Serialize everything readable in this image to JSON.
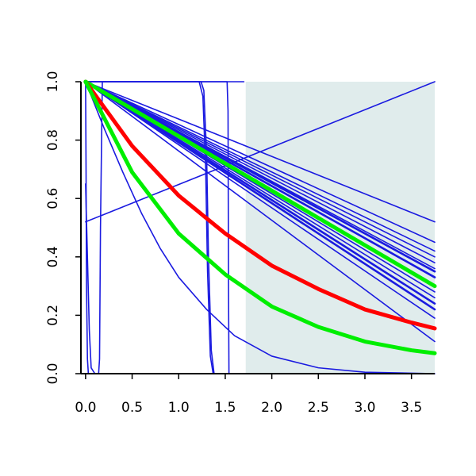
{
  "chart_data": {
    "type": "line",
    "title": "",
    "xlabel": "",
    "ylabel": "",
    "xlim": [
      -0.05,
      3.75
    ],
    "ylim": [
      0.0,
      1.0
    ],
    "grid": false,
    "legend": "none",
    "x_ticks": [
      "0.0",
      "0.5",
      "1.0",
      "1.5",
      "2.0",
      "2.5",
      "3.0",
      "3.5"
    ],
    "y_ticks": [
      "0.0",
      "0.2",
      "0.4",
      "0.6",
      "0.8",
      "1.0"
    ],
    "shaded_region": {
      "x": [
        1.72,
        3.75
      ],
      "y": [
        0.0,
        1.0
      ],
      "color": "#e0ecec"
    },
    "colors": {
      "blue": "#1a1ae0",
      "red": "#ff0000",
      "green": "#00ee00",
      "axis": "#000000"
    },
    "series": [
      {
        "color": "blue",
        "width": 1.6,
        "points": [
          [
            0.0,
            0.52
          ],
          [
            3.75,
            1.0
          ]
        ]
      },
      {
        "color": "blue",
        "width": 1.6,
        "points": [
          [
            0.0,
            1.0
          ],
          [
            0.2,
            0.84
          ],
          [
            0.4,
            0.69
          ],
          [
            0.6,
            0.55
          ],
          [
            0.8,
            0.43
          ],
          [
            1.0,
            0.33
          ],
          [
            1.3,
            0.22
          ],
          [
            1.6,
            0.13
          ],
          [
            2.0,
            0.06
          ],
          [
            2.5,
            0.02
          ],
          [
            3.0,
            0.005
          ],
          [
            3.75,
            0.0
          ]
        ]
      },
      {
        "color": "blue",
        "width": 1.6,
        "points": [
          [
            0.0,
            1.0
          ],
          [
            3.75,
            0.52
          ]
        ]
      },
      {
        "color": "blue",
        "width": 1.6,
        "points": [
          [
            0.0,
            1.0
          ],
          [
            3.75,
            0.45
          ]
        ]
      },
      {
        "color": "blue",
        "width": 1.6,
        "points": [
          [
            0.0,
            1.0
          ],
          [
            3.75,
            0.42
          ]
        ]
      },
      {
        "color": "blue",
        "width": 1.6,
        "points": [
          [
            0.0,
            1.0
          ],
          [
            3.75,
            0.4
          ]
        ]
      },
      {
        "color": "blue",
        "width": 1.6,
        "points": [
          [
            0.0,
            1.0
          ],
          [
            3.75,
            0.38
          ]
        ]
      },
      {
        "color": "blue",
        "width": 1.6,
        "points": [
          [
            0.0,
            1.0
          ],
          [
            3.75,
            0.36
          ]
        ]
      },
      {
        "color": "blue",
        "width": 2.6,
        "points": [
          [
            0.0,
            1.0
          ],
          [
            3.75,
            0.35
          ]
        ]
      },
      {
        "color": "blue",
        "width": 2.6,
        "points": [
          [
            0.0,
            1.0
          ],
          [
            3.75,
            0.33
          ]
        ]
      },
      {
        "color": "blue",
        "width": 1.6,
        "points": [
          [
            0.0,
            1.0
          ],
          [
            3.75,
            0.3
          ]
        ]
      },
      {
        "color": "blue",
        "width": 1.6,
        "points": [
          [
            0.0,
            1.0
          ],
          [
            3.75,
            0.28
          ]
        ]
      },
      {
        "color": "blue",
        "width": 1.6,
        "points": [
          [
            0.0,
            1.0
          ],
          [
            3.75,
            0.26
          ]
        ]
      },
      {
        "color": "blue",
        "width": 2.6,
        "points": [
          [
            0.0,
            1.0
          ],
          [
            3.75,
            0.24
          ]
        ]
      },
      {
        "color": "blue",
        "width": 2.6,
        "points": [
          [
            0.0,
            1.0
          ],
          [
            3.75,
            0.22
          ]
        ]
      },
      {
        "color": "blue",
        "width": 1.6,
        "points": [
          [
            0.0,
            1.0
          ],
          [
            3.75,
            0.19
          ]
        ]
      },
      {
        "color": "blue",
        "width": 1.6,
        "points": [
          [
            0.0,
            1.0
          ],
          [
            3.75,
            0.11
          ]
        ]
      },
      {
        "color": "blue",
        "width": 1.6,
        "points": [
          [
            0.0,
            1.0
          ],
          [
            0.005,
            0.7
          ],
          [
            0.01,
            0.3
          ],
          [
            0.02,
            0.05
          ],
          [
            0.03,
            0.0
          ],
          [
            0.06,
            0.0
          ]
        ]
      },
      {
        "color": "blue",
        "width": 1.6,
        "points": [
          [
            0.0,
            0.65
          ],
          [
            0.04,
            0.15
          ],
          [
            0.06,
            0.02
          ],
          [
            0.1,
            0.0
          ]
        ]
      },
      {
        "color": "blue",
        "width": 1.6,
        "points": [
          [
            0.1,
            0.0
          ],
          [
            0.14,
            0.0
          ],
          [
            0.15,
            0.05
          ],
          [
            0.16,
            0.5
          ],
          [
            0.18,
            1.0
          ],
          [
            0.22,
            1.0
          ]
        ]
      },
      {
        "color": "blue",
        "width": 1.6,
        "points": [
          [
            0.0,
            1.0
          ],
          [
            1.24,
            1.0
          ],
          [
            1.27,
            0.97
          ],
          [
            1.3,
            0.75
          ],
          [
            1.32,
            0.4
          ],
          [
            1.35,
            0.08
          ],
          [
            1.38,
            0.0
          ],
          [
            1.42,
            0.0
          ]
        ]
      },
      {
        "color": "blue",
        "width": 1.6,
        "points": [
          [
            0.0,
            1.0
          ],
          [
            1.22,
            1.0
          ],
          [
            1.26,
            0.95
          ],
          [
            1.29,
            0.7
          ],
          [
            1.31,
            0.35
          ],
          [
            1.34,
            0.06
          ],
          [
            1.37,
            0.0
          ]
        ]
      },
      {
        "color": "blue",
        "width": 1.6,
        "points": [
          [
            0.0,
            1.0
          ],
          [
            1.52,
            1.0
          ],
          [
            1.53,
            0.9
          ],
          [
            1.535,
            0.3
          ],
          [
            1.54,
            0.0
          ],
          [
            1.6,
            0.0
          ]
        ]
      },
      {
        "color": "blue",
        "width": 1.6,
        "points": [
          [
            0.0,
            1.0
          ],
          [
            1.7,
            1.0
          ]
        ]
      },
      {
        "color": "green",
        "width": 5,
        "points": [
          [
            0.0,
            1.0
          ],
          [
            3.75,
            0.3
          ]
        ]
      },
      {
        "color": "red",
        "width": 5,
        "points": [
          [
            0.0,
            1.0
          ],
          [
            0.5,
            0.78
          ],
          [
            1.0,
            0.61
          ],
          [
            1.5,
            0.48
          ],
          [
            2.0,
            0.37
          ],
          [
            2.5,
            0.29
          ],
          [
            3.0,
            0.22
          ],
          [
            3.5,
            0.175
          ],
          [
            3.75,
            0.155
          ]
        ]
      },
      {
        "color": "green",
        "width": 5,
        "points": [
          [
            0.0,
            1.0
          ],
          [
            0.5,
            0.69
          ],
          [
            1.0,
            0.48
          ],
          [
            1.5,
            0.34
          ],
          [
            2.0,
            0.23
          ],
          [
            2.5,
            0.16
          ],
          [
            3.0,
            0.11
          ],
          [
            3.5,
            0.08
          ],
          [
            3.75,
            0.07
          ]
        ]
      }
    ]
  }
}
